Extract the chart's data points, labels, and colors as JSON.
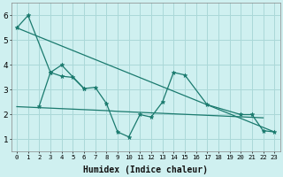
{
  "xlabel": "Humidex (Indice chaleur)",
  "bg_color": "#cff0f0",
  "grid_color": "#aad8d8",
  "line_color": "#1a7a6e",
  "xlim": [
    -0.5,
    23.5
  ],
  "ylim": [
    0.5,
    6.5
  ],
  "yticks": [
    1,
    2,
    3,
    4,
    5,
    6
  ],
  "xticks": [
    0,
    1,
    2,
    3,
    4,
    5,
    6,
    7,
    8,
    9,
    10,
    11,
    12,
    13,
    14,
    15,
    16,
    17,
    18,
    19,
    20,
    21,
    22,
    23
  ],
  "line1_x": [
    0,
    1,
    3,
    4,
    6,
    7,
    8,
    9,
    10,
    11,
    12,
    13,
    14,
    15,
    17,
    20,
    21,
    22,
    23
  ],
  "line1_y": [
    5.5,
    6.0,
    3.7,
    4.0,
    3.05,
    3.1,
    2.45,
    1.3,
    1.1,
    2.0,
    1.9,
    2.5,
    3.7,
    3.6,
    2.4,
    2.0,
    2.0,
    1.35,
    1.3
  ],
  "line2_x": [
    2,
    3,
    4,
    5,
    6
  ],
  "line2_y": [
    2.35,
    3.7,
    3.55,
    3.5,
    3.05
  ],
  "line3_x": [
    0,
    1,
    2,
    3,
    4,
    5,
    6,
    7,
    8,
    9,
    10,
    11,
    12,
    13,
    14,
    15,
    16,
    17,
    18,
    19,
    20,
    21,
    22
  ],
  "line3_y": [
    2.32,
    2.3,
    2.28,
    2.26,
    2.24,
    2.22,
    2.2,
    2.18,
    2.16,
    2.13,
    2.11,
    2.09,
    2.07,
    2.05,
    2.03,
    2.01,
    1.99,
    1.97,
    1.95,
    1.93,
    1.91,
    1.89,
    1.87
  ],
  "line4_x": [
    0,
    23
  ],
  "line4_y": [
    5.5,
    1.3
  ]
}
